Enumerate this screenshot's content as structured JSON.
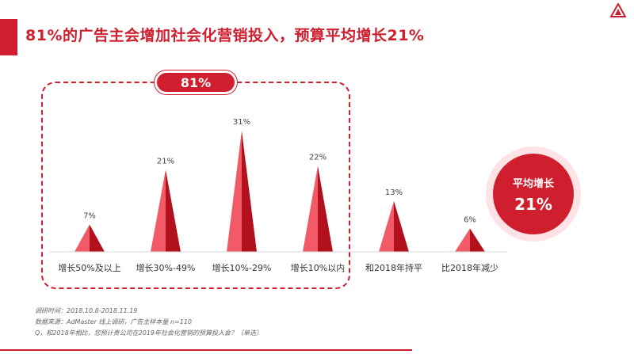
{
  "title": "81%的广告主会增加社会化营销投入，预算平均增长21%",
  "group_badge": "81%",
  "summary": {
    "label": "平均增长",
    "value": "21%"
  },
  "notes": [
    "调研时间：2018.10.8-2018.11.19",
    "数据来源：AdMaster 线上调研，广告主样本量 n=110",
    "Q，和2018年相比，您预计贵公司在2019年社会化营销的预算投入会？（单选）"
  ],
  "colors": {
    "accent": "#cf1f2e",
    "peak_light": "#f15a66",
    "peak_dark": "#b3101e"
  },
  "chart_data": {
    "type": "bar",
    "categories": [
      "增长50%及以上",
      "增长30%-49%",
      "增长10%-29%",
      "增长10%以内",
      "和2018年持平",
      "比2018年减少"
    ],
    "values": [
      7,
      21,
      31,
      22,
      13,
      6
    ],
    "value_labels": [
      "7%",
      "21%",
      "31%",
      "22%",
      "13%",
      "6%"
    ],
    "title": "81%的广告主会增加社会化营销投入，预算平均增长21%",
    "xlabel": "",
    "ylabel": "",
    "ylim": [
      0,
      31
    ],
    "grid": false,
    "legend": "none"
  }
}
